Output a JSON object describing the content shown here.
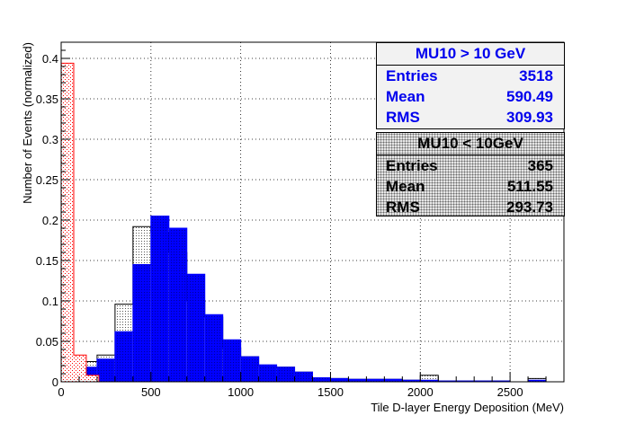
{
  "chart_data": {
    "type": "histogram",
    "xlabel": "Tile D-layer Energy Deposition (MeV)",
    "ylabel": "Number of Events (normalized)",
    "xlim": [
      0,
      2800
    ],
    "ylim": [
      0,
      0.42
    ],
    "xticks": [
      0,
      500,
      1000,
      1500,
      2000,
      2500
    ],
    "yticks": [
      0,
      0.05,
      0.1,
      0.15,
      0.2,
      0.25,
      0.3,
      0.35,
      0.4
    ],
    "grid": true,
    "bin_edges": [
      0,
      100,
      200,
      300,
      400,
      500,
      600,
      700,
      800,
      900,
      1000,
      1100,
      1200,
      1300,
      1400,
      1500,
      1600,
      1700,
      1800,
      1900,
      2000,
      2100,
      2200,
      2300,
      2400,
      2500,
      2600,
      2700
    ],
    "series": [
      {
        "name": "MU10 > 10 GeV",
        "color": "#0000ff",
        "fill": "solid-blue",
        "values": [
          0.005,
          0.018,
          0.028,
          0.062,
          0.145,
          0.205,
          0.19,
          0.133,
          0.083,
          0.052,
          0.031,
          0.021,
          0.018,
          0.012,
          0.005,
          0.004,
          0.003,
          0.003,
          0.003,
          0.002,
          0.002,
          0.001,
          0.001,
          0.001,
          0.001,
          0.0,
          0.002
        ]
      },
      {
        "name": "MU10 < 10GeV",
        "color": "#000000",
        "fill": "dotted-gray",
        "values": [
          0.03,
          0.025,
          0.033,
          0.096,
          0.192,
          0.185,
          0.16,
          0.1,
          0.08,
          0.042,
          0.031,
          0.02,
          0.018,
          0.012,
          0.005,
          0.004,
          0.003,
          0.003,
          0.003,
          0.002,
          0.008,
          0.001,
          0.001,
          0.001,
          0.001,
          0.0,
          0.004
        ]
      },
      {
        "name": "",
        "color": "#ff0000",
        "fill": "red-hatched",
        "bin_edges": [
          0,
          70,
          140,
          210
        ],
        "values": [
          0.394,
          0.033,
          0.008
        ]
      }
    ]
  },
  "stats": {
    "box_a": {
      "title": "MU10 > 10 GeV",
      "rows": [
        {
          "label": "Entries",
          "value": "3518"
        },
        {
          "label": "Mean",
          "value": "590.49"
        },
        {
          "label": "RMS",
          "value": "309.93"
        }
      ]
    },
    "box_b": {
      "title": "MU10 < 10GeV",
      "rows": [
        {
          "label": "Entries",
          "value": "365"
        },
        {
          "label": "Mean",
          "value": "511.55"
        },
        {
          "label": "RMS",
          "value": "293.73"
        }
      ]
    }
  }
}
